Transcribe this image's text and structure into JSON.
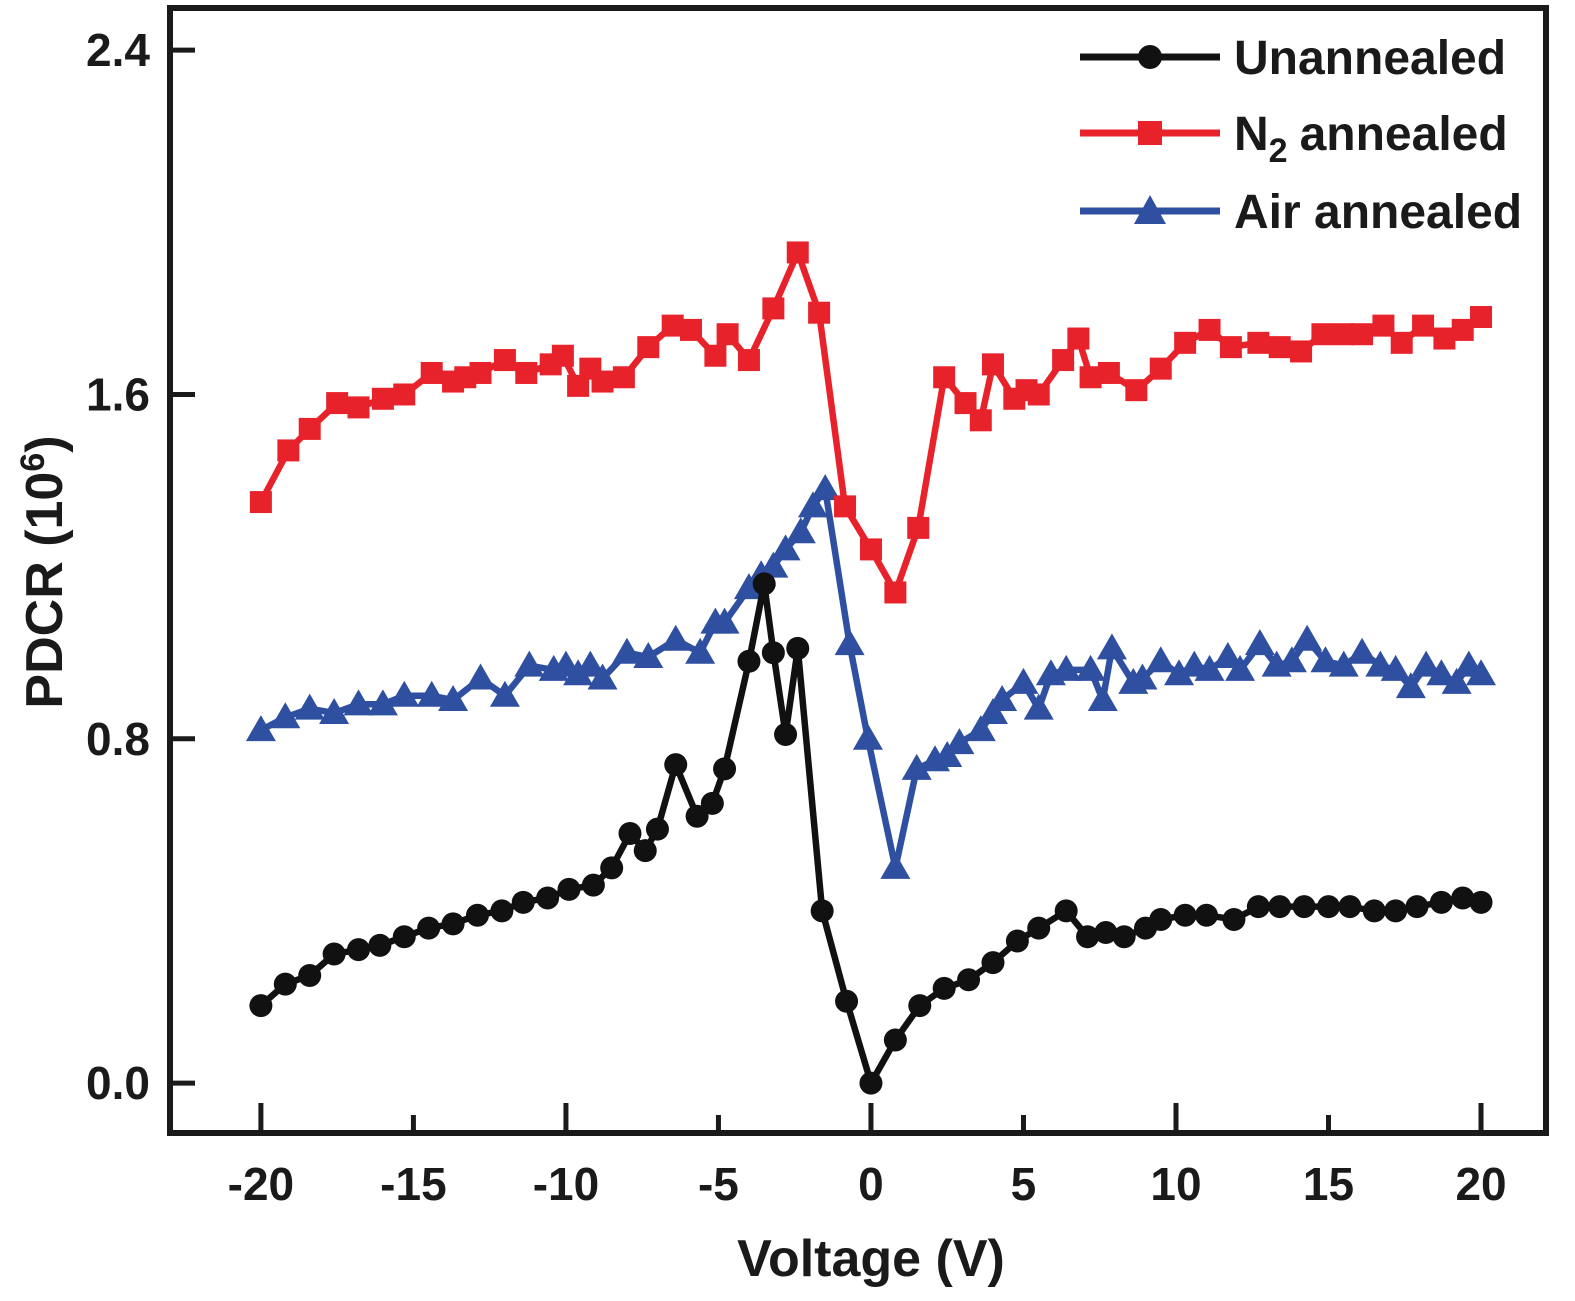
{
  "chart_data": {
    "type": "line",
    "title": "",
    "xlabel": "Voltage (V)",
    "ylabel_parts": {
      "pre": "PDCR (10",
      "sup": "6",
      "post": ")"
    },
    "x_range": [
      -22.98,
      22.13
    ],
    "y_range": [
      -0.116,
      2.498
    ],
    "grid": false,
    "legend_position": "top-right-inside",
    "x_ticks": [
      {
        "v": -20,
        "label": "-20",
        "major": true
      },
      {
        "v": -15,
        "label": "-15",
        "major": false
      },
      {
        "v": -10,
        "label": "-10",
        "major": true
      },
      {
        "v": -5,
        "label": "-5",
        "major": false
      },
      {
        "v": 0,
        "label": "0",
        "major": true
      },
      {
        "v": 5,
        "label": "5",
        "major": false
      },
      {
        "v": 10,
        "label": "10",
        "major": true
      },
      {
        "v": 15,
        "label": "15",
        "major": false
      },
      {
        "v": 20,
        "label": "20",
        "major": true
      }
    ],
    "y_ticks": [
      {
        "v": 0.0,
        "label": "0.0"
      },
      {
        "v": 0.8,
        "label": "0.8"
      },
      {
        "v": 1.6,
        "label": "1.6"
      },
      {
        "v": 2.4,
        "label": "2.4"
      }
    ],
    "series": [
      {
        "name": "unannealed",
        "label": "Unannealed",
        "color": "#111111",
        "marker": "circle",
        "points": [
          [
            -20,
            0.18
          ],
          [
            -19.2,
            0.23
          ],
          [
            -18.4,
            0.25
          ],
          [
            -17.6,
            0.3
          ],
          [
            -16.8,
            0.31
          ],
          [
            -16.1,
            0.32
          ],
          [
            -15.3,
            0.34
          ],
          [
            -14.5,
            0.36
          ],
          [
            -13.7,
            0.37
          ],
          [
            -12.9,
            0.39
          ],
          [
            -12.1,
            0.4
          ],
          [
            -11.4,
            0.42
          ],
          [
            -10.6,
            0.43
          ],
          [
            -9.9,
            0.45
          ],
          [
            -9.1,
            0.46
          ],
          [
            -8.5,
            0.5
          ],
          [
            -7.9,
            0.58
          ],
          [
            -7.4,
            0.54
          ],
          [
            -7.0,
            0.59
          ],
          [
            -6.4,
            0.74
          ],
          [
            -5.7,
            0.62
          ],
          [
            -5.2,
            0.65
          ],
          [
            -4.8,
            0.73
          ],
          [
            -4.0,
            0.98
          ],
          [
            -3.5,
            1.16
          ],
          [
            -3.2,
            1.0
          ],
          [
            -2.8,
            0.81
          ],
          [
            -2.4,
            1.01
          ],
          [
            -1.6,
            0.4
          ],
          [
            -0.8,
            0.19
          ],
          [
            0,
            0.0
          ],
          [
            0.8,
            0.1
          ],
          [
            1.6,
            0.18
          ],
          [
            2.4,
            0.22
          ],
          [
            3.2,
            0.24
          ],
          [
            4.0,
            0.28
          ],
          [
            4.8,
            0.33
          ],
          [
            5.5,
            0.36
          ],
          [
            6.4,
            0.4
          ],
          [
            7.1,
            0.34
          ],
          [
            7.7,
            0.35
          ],
          [
            8.3,
            0.34
          ],
          [
            9.0,
            0.36
          ],
          [
            9.5,
            0.38
          ],
          [
            10.3,
            0.39
          ],
          [
            11.0,
            0.39
          ],
          [
            11.9,
            0.38
          ],
          [
            12.7,
            0.41
          ],
          [
            13.4,
            0.41
          ],
          [
            14.2,
            0.41
          ],
          [
            15.0,
            0.41
          ],
          [
            15.7,
            0.41
          ],
          [
            16.5,
            0.4
          ],
          [
            17.2,
            0.4
          ],
          [
            17.9,
            0.41
          ],
          [
            18.7,
            0.42
          ],
          [
            19.4,
            0.43
          ],
          [
            20,
            0.42
          ]
        ]
      },
      {
        "name": "n2-annealed",
        "label_parts": {
          "pre": "N",
          "sub": "2",
          "post": "annealed"
        },
        "color": "#e8222b",
        "marker": "square",
        "points": [
          [
            -20,
            1.35
          ],
          [
            -19.1,
            1.47
          ],
          [
            -18.4,
            1.52
          ],
          [
            -17.5,
            1.58
          ],
          [
            -16.8,
            1.57
          ],
          [
            -16.0,
            1.59
          ],
          [
            -15.3,
            1.6
          ],
          [
            -14.4,
            1.65
          ],
          [
            -13.7,
            1.63
          ],
          [
            -13.3,
            1.64
          ],
          [
            -12.8,
            1.65
          ],
          [
            -12.0,
            1.68
          ],
          [
            -11.3,
            1.65
          ],
          [
            -10.5,
            1.67
          ],
          [
            -10.1,
            1.69
          ],
          [
            -9.6,
            1.62
          ],
          [
            -9.2,
            1.66
          ],
          [
            -8.8,
            1.63
          ],
          [
            -8.1,
            1.64
          ],
          [
            -7.3,
            1.71
          ],
          [
            -6.5,
            1.76
          ],
          [
            -5.9,
            1.75
          ],
          [
            -5.1,
            1.69
          ],
          [
            -4.7,
            1.74
          ],
          [
            -4.0,
            1.68
          ],
          [
            -3.2,
            1.8
          ],
          [
            -2.4,
            1.93
          ],
          [
            -1.7,
            1.79
          ],
          [
            -0.85,
            1.34
          ],
          [
            0.0,
            1.24
          ],
          [
            0.8,
            1.14
          ],
          [
            1.55,
            1.29
          ],
          [
            2.4,
            1.64
          ],
          [
            3.1,
            1.58
          ],
          [
            3.6,
            1.54
          ],
          [
            4.0,
            1.67
          ],
          [
            4.7,
            1.59
          ],
          [
            5.1,
            1.61
          ],
          [
            5.5,
            1.6
          ],
          [
            6.3,
            1.68
          ],
          [
            6.8,
            1.73
          ],
          [
            7.2,
            1.64
          ],
          [
            7.8,
            1.65
          ],
          [
            8.7,
            1.61
          ],
          [
            9.5,
            1.66
          ],
          [
            10.3,
            1.72
          ],
          [
            11.1,
            1.75
          ],
          [
            11.8,
            1.71
          ],
          [
            12.7,
            1.72
          ],
          [
            13.4,
            1.71
          ],
          [
            14.1,
            1.7
          ],
          [
            14.8,
            1.74
          ],
          [
            15.5,
            1.74
          ],
          [
            16.1,
            1.74
          ],
          [
            16.8,
            1.76
          ],
          [
            17.4,
            1.72
          ],
          [
            18.1,
            1.76
          ],
          [
            18.8,
            1.73
          ],
          [
            19.4,
            1.75
          ],
          [
            20,
            1.78
          ]
        ]
      },
      {
        "name": "air-annealed",
        "label": "Air annealed",
        "color": "#2f4fa0",
        "marker": "triangle",
        "points": [
          [
            -20,
            0.82
          ],
          [
            -19.2,
            0.85
          ],
          [
            -18.4,
            0.87
          ],
          [
            -17.6,
            0.86
          ],
          [
            -16.8,
            0.88
          ],
          [
            -16.0,
            0.88
          ],
          [
            -15.3,
            0.9
          ],
          [
            -14.4,
            0.9
          ],
          [
            -13.7,
            0.89
          ],
          [
            -12.8,
            0.94
          ],
          [
            -12.0,
            0.9
          ],
          [
            -11.2,
            0.97
          ],
          [
            -10.4,
            0.96
          ],
          [
            -10.0,
            0.97
          ],
          [
            -9.6,
            0.95
          ],
          [
            -9.2,
            0.97
          ],
          [
            -8.8,
            0.94
          ],
          [
            -8.0,
            1.0
          ],
          [
            -7.3,
            0.99
          ],
          [
            -6.4,
            1.03
          ],
          [
            -5.6,
            1.0
          ],
          [
            -5.1,
            1.07
          ],
          [
            -4.8,
            1.07
          ],
          [
            -4.0,
            1.15
          ],
          [
            -3.6,
            1.18
          ],
          [
            -3.2,
            1.2
          ],
          [
            -2.8,
            1.24
          ],
          [
            -2.3,
            1.28
          ],
          [
            -1.9,
            1.34
          ],
          [
            -1.5,
            1.38
          ],
          [
            -0.7,
            1.02
          ],
          [
            -0.1,
            0.8
          ],
          [
            0.8,
            0.5
          ],
          [
            1.5,
            0.73
          ],
          [
            2.1,
            0.75
          ],
          [
            2.5,
            0.76
          ],
          [
            2.9,
            0.79
          ],
          [
            3.6,
            0.82
          ],
          [
            4.0,
            0.86
          ],
          [
            4.3,
            0.89
          ],
          [
            5.0,
            0.93
          ],
          [
            5.5,
            0.87
          ],
          [
            5.9,
            0.95
          ],
          [
            6.4,
            0.96
          ],
          [
            7.2,
            0.96
          ],
          [
            7.6,
            0.89
          ],
          [
            7.9,
            1.01
          ],
          [
            8.6,
            0.93
          ],
          [
            8.9,
            0.94
          ],
          [
            9.5,
            0.98
          ],
          [
            10.1,
            0.95
          ],
          [
            10.6,
            0.97
          ],
          [
            11.1,
            0.96
          ],
          [
            11.7,
            0.99
          ],
          [
            12.1,
            0.96
          ],
          [
            12.75,
            1.02
          ],
          [
            13.3,
            0.97
          ],
          [
            13.8,
            0.98
          ],
          [
            14.3,
            1.03
          ],
          [
            14.9,
            0.98
          ],
          [
            15.5,
            0.97
          ],
          [
            16.1,
            1.0
          ],
          [
            16.7,
            0.97
          ],
          [
            17.2,
            0.96
          ],
          [
            17.7,
            0.92
          ],
          [
            18.2,
            0.97
          ],
          [
            18.7,
            0.95
          ],
          [
            19.2,
            0.93
          ],
          [
            19.6,
            0.97
          ],
          [
            20,
            0.95
          ]
        ]
      }
    ]
  }
}
